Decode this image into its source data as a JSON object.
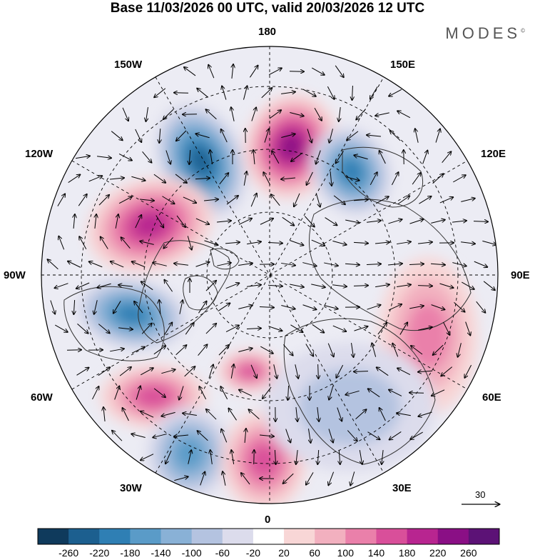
{
  "title": "Base 11/03/2026 00 UTC, valid 20/03/2026 12 UTC",
  "brand": "MODES",
  "brand_mark": "©",
  "longitude_labels": {
    "top": "180",
    "bottom": "0",
    "left": "90W",
    "right": "90E",
    "upper_left": "150W",
    "upper_right": "150E",
    "mid_upper_left": "120W",
    "mid_upper_right": "120E",
    "mid_lower_left": "60W",
    "mid_lower_right": "60E",
    "lower_left": "30W",
    "lower_right": "30E"
  },
  "reference_vector": {
    "value": "30"
  },
  "colorbar": {
    "ticks": [
      "-260",
      "-220",
      "-180",
      "-140",
      "-100",
      "-60",
      "-20",
      "20",
      "60",
      "100",
      "140",
      "180",
      "220",
      "260"
    ],
    "colors": [
      "#0f3a5c",
      "#1c5f8f",
      "#2f7fb4",
      "#5a9bc8",
      "#89b1d6",
      "#b4c3e0",
      "#dcdcec",
      "#ffffff",
      "#f8d6d6",
      "#f2b0bf",
      "#ea80aa",
      "#d94f9a",
      "#b82590",
      "#8a0f85",
      "#5c1276"
    ]
  },
  "palette": {
    "land_fill": "#f2f2f2",
    "coast": "#333333",
    "grid": "#000000"
  },
  "chart_data": {
    "type": "map",
    "projection": "north polar stereographic",
    "field": "geopotential height anomaly with wind vectors",
    "color_levels": [
      -260,
      -220,
      -180,
      -140,
      -100,
      -60,
      -20,
      20,
      60,
      100,
      140,
      180,
      220,
      260
    ],
    "anomaly_centers": [
      {
        "region": "North Pacific (near 170W)",
        "sign": "negative",
        "peak": -220
      },
      {
        "region": "Bering Sea / near 180",
        "sign": "positive",
        "peak": 220
      },
      {
        "region": "East Siberia (near 150E)",
        "sign": "negative",
        "peak": -180
      },
      {
        "region": "NE Pacific / Western Canada (near 120W)",
        "sign": "positive",
        "peak": 180
      },
      {
        "region": "Central North America (near 90W)",
        "sign": "negative",
        "peak": -180
      },
      {
        "region": "Greenland / Labrador Sea",
        "sign": "positive",
        "peak": 140
      },
      {
        "region": "Western North Atlantic (near 60W)",
        "sign": "positive",
        "peak": 140
      },
      {
        "region": "Central North Atlantic (near 40W)",
        "sign": "negative",
        "peak": -140
      },
      {
        "region": "Eastern Atlantic / Iberia (near 0)",
        "sign": "positive",
        "peak": 140
      },
      {
        "region": "Central Asia (near 75E)",
        "sign": "positive",
        "peak": 100
      },
      {
        "region": "Europe / Mediterranean (near 30E)",
        "sign": "negative",
        "peak": -60
      }
    ]
  }
}
